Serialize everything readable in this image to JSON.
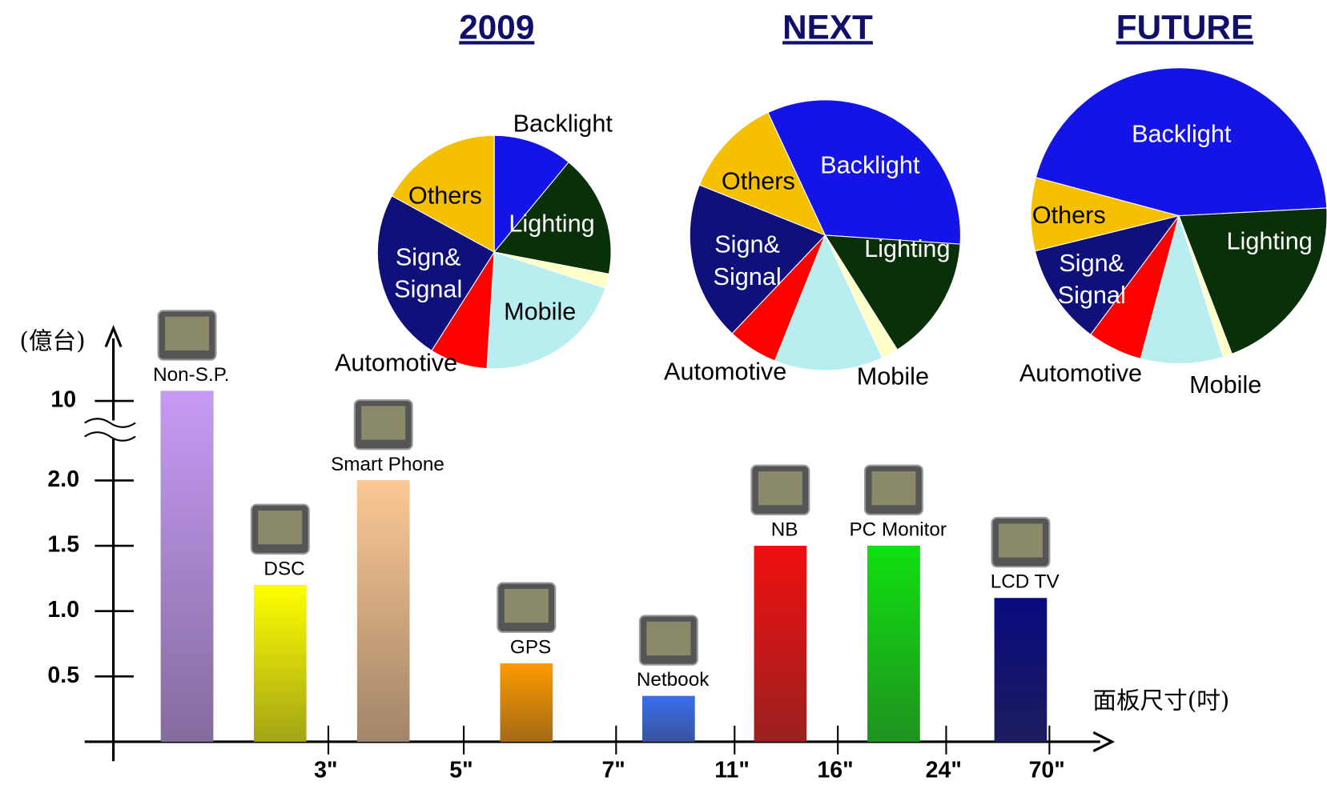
{
  "chart_data": [
    {
      "type": "bar",
      "y_label": "(億台)",
      "x_label": "面板尺寸(吋)",
      "categories": [
        "Non-S.P.",
        "DSC",
        "Smart Phone",
        "GPS",
        "Netbook",
        "NB",
        "PC Monitor",
        "LCD TV"
      ],
      "values": [
        11,
        1.2,
        2.0,
        0.6,
        0.35,
        1.5,
        1.5,
        1.1
      ],
      "colors": [
        "#c79af5",
        "#ffff00",
        "#fcc894",
        "#ff9a00",
        "#3a6ef0",
        "#f01010",
        "#10e010",
        "#0a0a80"
      ],
      "ylim": [
        0,
        11
      ],
      "ybreak": [
        2.0,
        10
      ],
      "yticks": [
        {
          "value": 0.5,
          "label": "0.5"
        },
        {
          "value": 1,
          "label": "1.0"
        },
        {
          "value": 1.5,
          "label": "1.5"
        },
        {
          "value": 2,
          "label": "2.0"
        },
        10
      ],
      "size_ticks": [
        "3\"",
        "5\"",
        "7\"",
        "11\"",
        "16\"",
        "24\"",
        "70\""
      ]
    },
    {
      "type": "pie",
      "title": "2009",
      "startangle": 0,
      "labels": [
        "Backlight",
        "Lighting",
        null,
        "Mobile",
        "Automotive",
        "Sign& Signal",
        "Others"
      ],
      "values": [
        11,
        17,
        2,
        21,
        8,
        24,
        17
      ],
      "colors": [
        "#1414e6",
        "#0a300a",
        "#ffffc8",
        "#b8eef0",
        "#ff0000",
        "#10107a",
        "#f5c000"
      ]
    },
    {
      "type": "pie",
      "title": "NEXT",
      "startangle": -25,
      "labels": [
        "Backlight",
        "Lighting",
        null,
        "Mobile",
        "Automotive",
        "Sign& Signal",
        "Others"
      ],
      "values": [
        33,
        15,
        2,
        13,
        6,
        19,
        12
      ],
      "colors": [
        "#1414e6",
        "#0a300a",
        "#ffffc8",
        "#b8eef0",
        "#ff0000",
        "#10107a",
        "#f5c000"
      ]
    },
    {
      "type": "pie",
      "title": "FUTURE",
      "startangle": -75,
      "labels": [
        "Backlight",
        "Lighting",
        null,
        "Mobile",
        "Automotive",
        "Sign& Signal",
        "Others"
      ],
      "values": [
        45,
        20,
        1,
        9,
        6,
        11,
        8
      ],
      "colors": [
        "#1414e6",
        "#0a300a",
        "#ffffc8",
        "#b8eef0",
        "#ff0000",
        "#10107a",
        "#f5c000"
      ]
    }
  ]
}
